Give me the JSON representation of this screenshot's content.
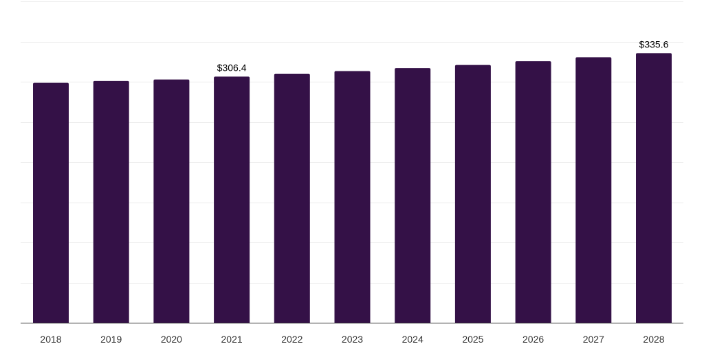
{
  "colors": {
    "bar": "#341147",
    "grid": "#ececec",
    "axis": "#333333",
    "label": "#333333",
    "background": "#ffffff"
  },
  "chart_data": {
    "type": "bar",
    "categories": [
      "2018",
      "2019",
      "2020",
      "2021",
      "2022",
      "2023",
      "2024",
      "2025",
      "2026",
      "2027",
      "2028"
    ],
    "series": [
      {
        "values": [
          298.6,
          301.0,
          302.8,
          306.4,
          309.7,
          313.2,
          317.0,
          320.8,
          325.5,
          330.4,
          335.6
        ]
      }
    ],
    "data_labels": [
      {
        "category": "2021",
        "text": "$306.4"
      },
      {
        "category": "2028",
        "text": "$335.6"
      }
    ],
    "title": "",
    "xlabel": "",
    "ylabel": "",
    "ylim": [
      0,
      400
    ],
    "grid": true,
    "legend": "none"
  }
}
